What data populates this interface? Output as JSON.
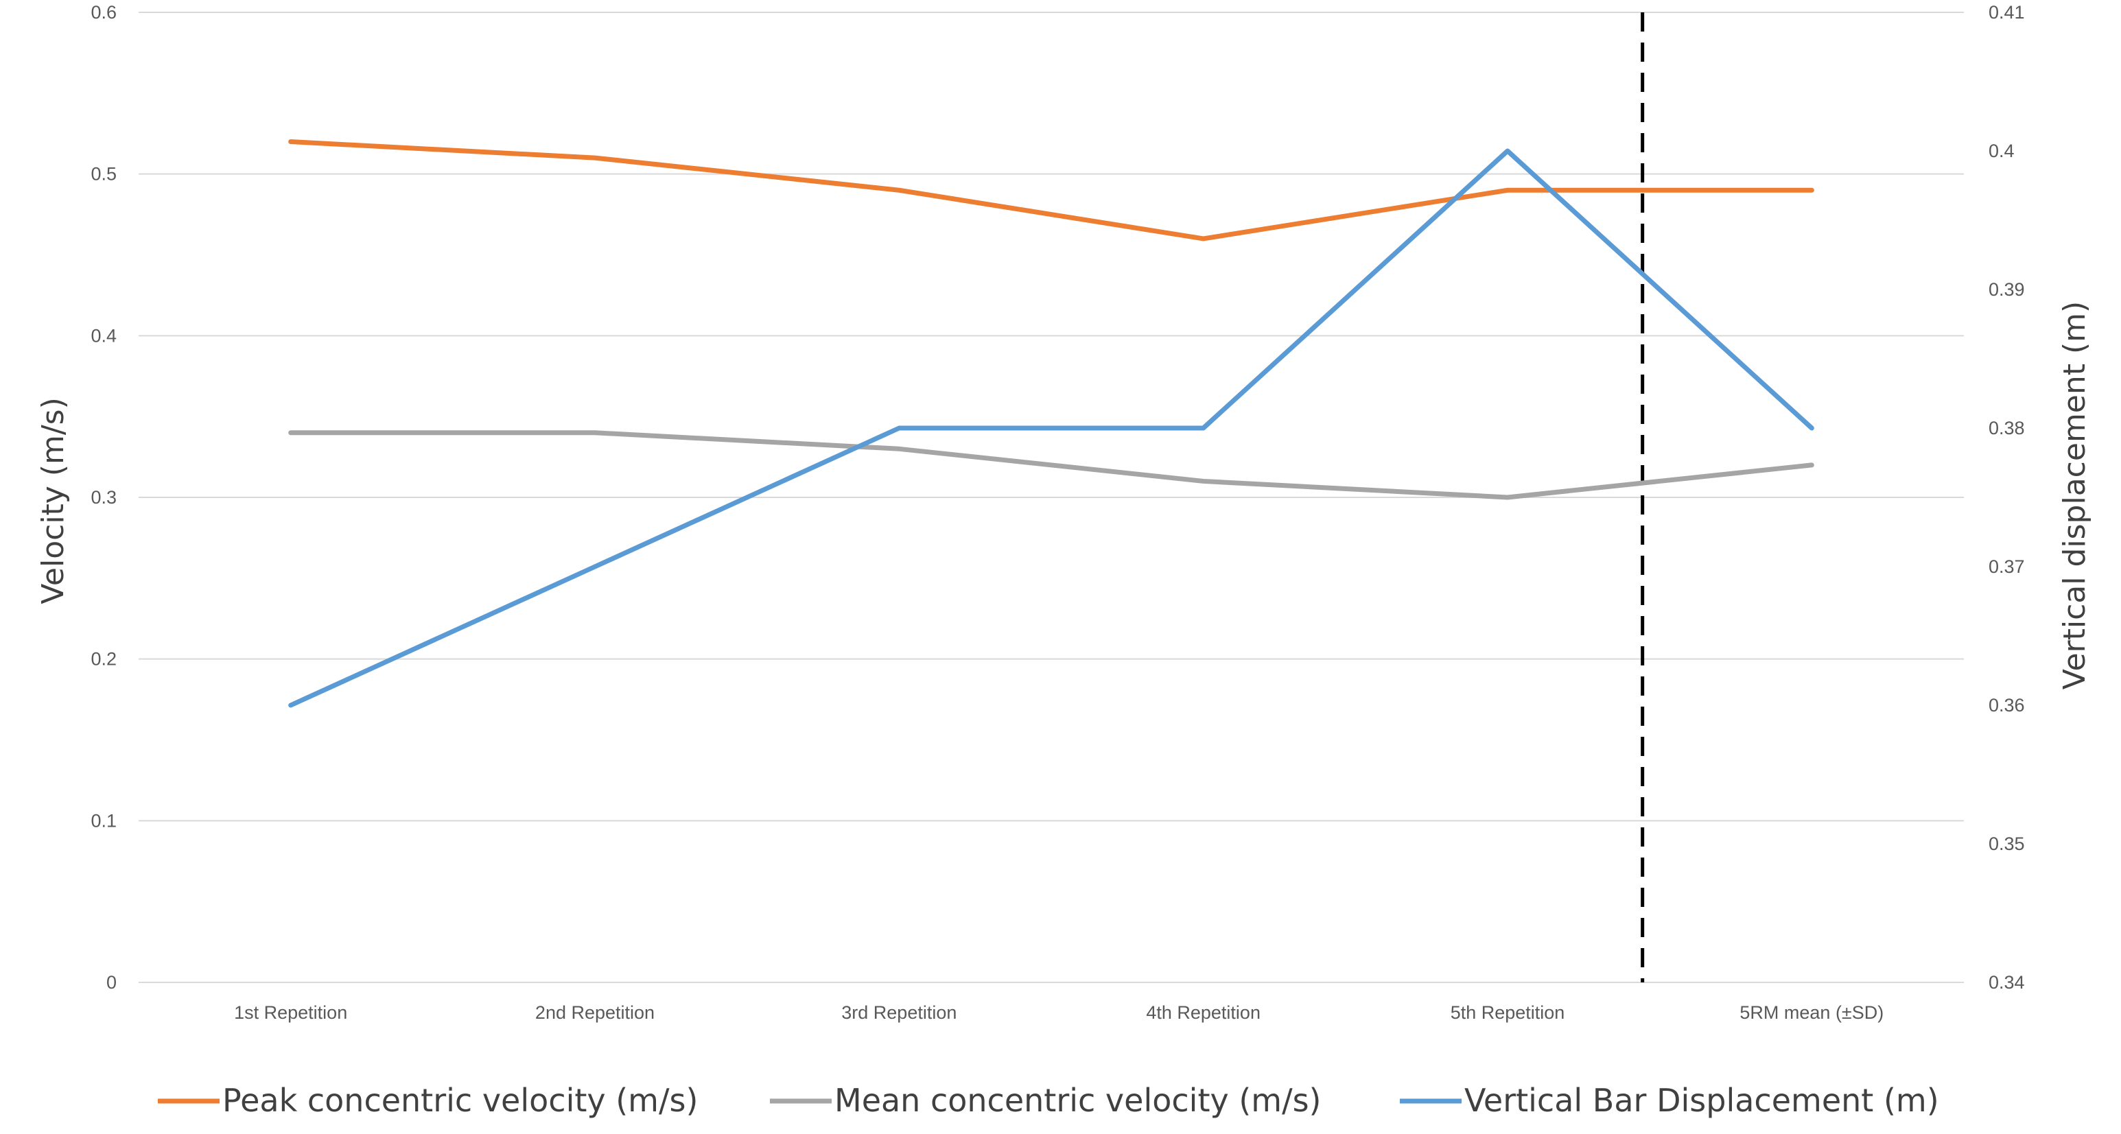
{
  "chart_data": {
    "type": "line",
    "categories": [
      "1st Repetition",
      "2nd  Repetition",
      "3rd  Repetition",
      "4th Repetition",
      "5th Repetition",
      "5RM mean (±SD)"
    ],
    "ylabel": "Velocity (m/s)",
    "y2label": "Vertical displacement (m)",
    "ylim": [
      0,
      0.6
    ],
    "y2lim": [
      0.34,
      0.41
    ],
    "yticks": [
      "0",
      "0.1",
      "0.2",
      "0.3",
      "0.4",
      "0.5",
      "0.6"
    ],
    "y2ticks": [
      "0.34",
      "0.35",
      "0.36",
      "0.37",
      "0.38",
      "0.39",
      "0.4",
      "0.41"
    ],
    "grid": true,
    "legend_position": "bottom",
    "separator_between": [
      "5th Repetition",
      "5RM mean (±SD)"
    ],
    "series": [
      {
        "name": "Peak concentric velocity (m/s)",
        "axis": "left",
        "color": "#ED7D31",
        "values": [
          0.52,
          0.51,
          0.49,
          0.46,
          0.49,
          0.49
        ]
      },
      {
        "name": "Mean concentric velocity (m/s)",
        "axis": "left",
        "color": "#A5A5A5",
        "values": [
          0.34,
          0.34,
          0.33,
          0.31,
          0.3,
          0.32
        ]
      },
      {
        "name": "Vertical Bar Displacement (m)",
        "axis": "right",
        "color": "#5B9BD5",
        "values": [
          0.36,
          0.37,
          0.38,
          0.38,
          0.4,
          0.38
        ]
      }
    ]
  }
}
